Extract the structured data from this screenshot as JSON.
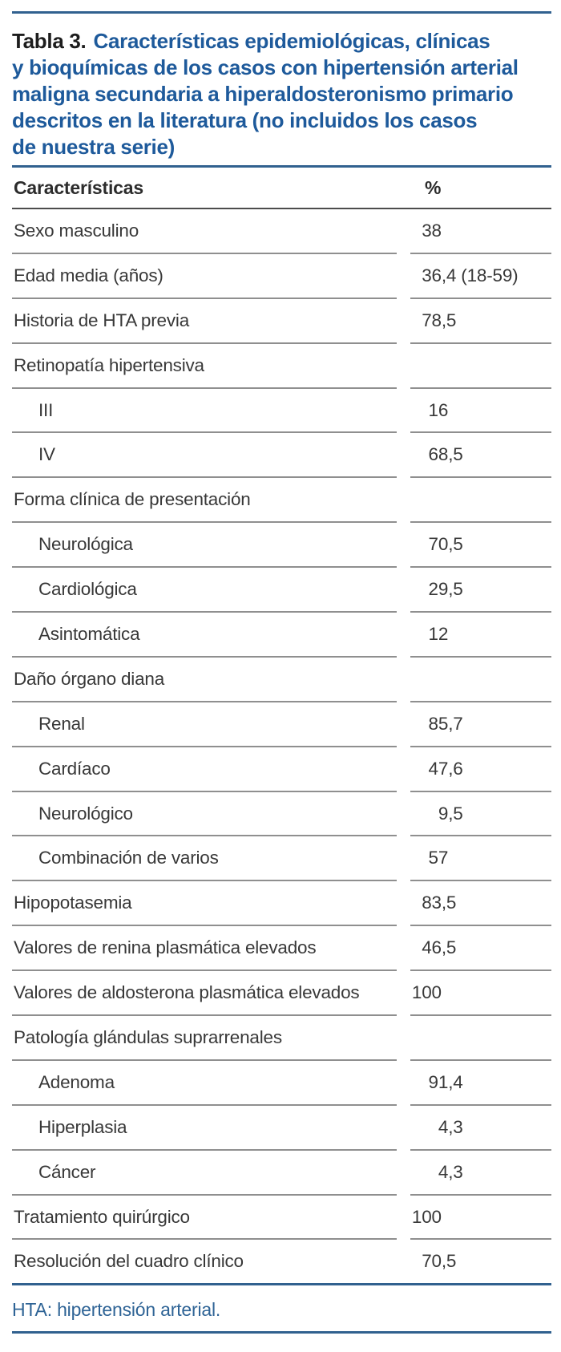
{
  "table": {
    "title": {
      "prefix": "Tabla 3.",
      "lines": [
        "Características epidemiológicas, clínicas",
        "y bioquímicas de los casos con hipertensión arterial",
        "maligna secundaria a hiperaldosteronismo primario",
        "descritos en la literatura (no incluidos los casos",
        "de nuestra serie)"
      ]
    },
    "columns": {
      "characteristic": "Características",
      "percent": "%"
    },
    "rows": [
      {
        "label": "Sexo masculino",
        "value": "38",
        "indent": false
      },
      {
        "label": "Edad media (años)",
        "value": "36,4 (18-59)",
        "indent": false
      },
      {
        "label": "Historia de HTA previa",
        "value": "78,5",
        "indent": false
      },
      {
        "label": "Retinopatía hipertensiva",
        "value": "",
        "indent": false
      },
      {
        "label": "III",
        "value": "16",
        "indent": true
      },
      {
        "label": "IV",
        "value": "68,5",
        "indent": true
      },
      {
        "label": "Forma clínica de presentación",
        "value": "",
        "indent": false
      },
      {
        "label": "Neurológica",
        "value": "70,5",
        "indent": true
      },
      {
        "label": "Cardiológica",
        "value": "29,5",
        "indent": true
      },
      {
        "label": "Asintomática",
        "value": "12",
        "indent": true
      },
      {
        "label": "Daño órgano diana",
        "value": "",
        "indent": false
      },
      {
        "label": "Renal",
        "value": "85,7",
        "indent": true
      },
      {
        "label": "Cardíaco",
        "value": "47,6",
        "indent": true
      },
      {
        "label": "Neurológico",
        "value": "9,5",
        "indent": true
      },
      {
        "label": "Combinación de varios",
        "value": "57",
        "indent": true
      },
      {
        "label": "Hipopotasemia",
        "value": "83,5",
        "indent": false
      },
      {
        "label": "Valores de renina plasmática elevados",
        "value": "46,5",
        "indent": false
      },
      {
        "label": "Valores de aldosterona plasmática elevados",
        "value": "100",
        "indent": false
      },
      {
        "label": "Patología glándulas suprarrenales",
        "value": "",
        "indent": false
      },
      {
        "label": "Adenoma",
        "value": "91,4",
        "indent": true
      },
      {
        "label": "Hiperplasia",
        "value": "4,3",
        "indent": true
      },
      {
        "label": "Cáncer",
        "value": "4,3",
        "indent": true
      },
      {
        "label": "Tratamiento quirúrgico",
        "value": "100",
        "indent": false
      },
      {
        "label": "Resolución del cuadro clínico",
        "value": "70,5",
        "indent": false
      }
    ],
    "footnote": "HTA: hipertensión arterial."
  },
  "colors": {
    "title_blue": "#1e5a9b",
    "rule_blue": "#31618f",
    "footer_blue": "#2f6496",
    "text_dark": "#383838",
    "divider_gray": "#8f8f8f",
    "header_line": "#4c4c4c"
  }
}
